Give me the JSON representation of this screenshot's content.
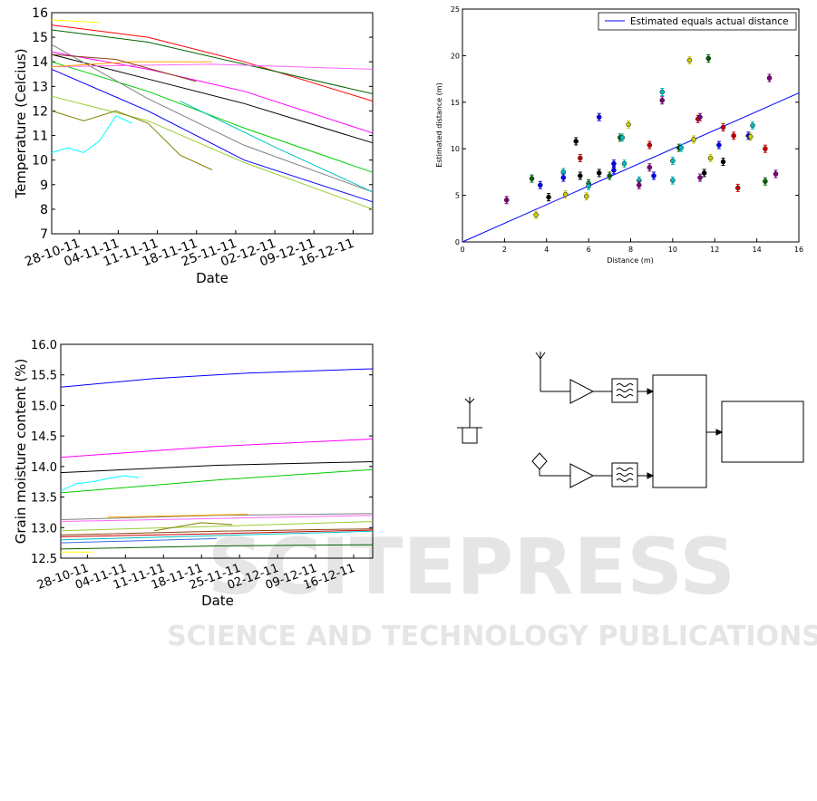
{
  "charts": {
    "temperature": {
      "type": "line",
      "ylabel": "Temperature (Celcius)",
      "xlabel": "Date",
      "ylim": [
        7,
        16
      ],
      "yticks": [
        "7",
        "8",
        "9",
        "10",
        "11",
        "12",
        "13",
        "14",
        "15",
        "16"
      ],
      "xticks": [
        "28-10-11",
        "04-11-11",
        "11-11-11",
        "18-11-11",
        "25-11-11",
        "02-12-11",
        "09-12-11",
        "16-12-11"
      ],
      "series": [
        {
          "color": "#ff0000",
          "x": [
            0,
            0.3,
            0.6,
            1
          ],
          "y": [
            15.5,
            15.0,
            14.0,
            12.4
          ]
        },
        {
          "color": "#006400",
          "x": [
            0,
            0.3,
            0.6,
            1
          ],
          "y": [
            15.3,
            14.8,
            13.9,
            12.7
          ]
        },
        {
          "color": "#ff00ff",
          "x": [
            0,
            0.3,
            0.6,
            1
          ],
          "y": [
            14.4,
            13.7,
            12.8,
            11.1
          ]
        },
        {
          "color": "#000000",
          "x": [
            0,
            0.3,
            0.6,
            1
          ],
          "y": [
            14.3,
            13.3,
            12.3,
            10.7
          ]
        },
        {
          "color": "#00cc00",
          "x": [
            0,
            0.3,
            0.6,
            1
          ],
          "y": [
            14.0,
            12.8,
            11.3,
            9.5
          ]
        },
        {
          "color": "#808080",
          "x": [
            0,
            0.3,
            0.6,
            1
          ],
          "y": [
            14.7,
            12.5,
            10.6,
            8.7
          ]
        },
        {
          "color": "#0000ff",
          "x": [
            0,
            0.3,
            0.6,
            1
          ],
          "y": [
            13.7,
            12.0,
            10.0,
            8.3
          ]
        },
        {
          "color": "#9acd32",
          "x": [
            0,
            0.3,
            0.6,
            1
          ],
          "y": [
            12.6,
            11.6,
            9.9,
            8.0
          ]
        },
        {
          "color": "#ff66ff",
          "x": [
            0,
            0.5,
            1
          ],
          "y": [
            13.8,
            13.9,
            13.7
          ]
        },
        {
          "color": "#ffa500",
          "x": [
            0,
            0.25,
            0.5
          ],
          "y": [
            13.8,
            14.0,
            14.0
          ]
        },
        {
          "color": "#00bfbf",
          "x": [
            0.4,
            0.7,
            1
          ],
          "y": [
            12.4,
            10.5,
            8.7
          ]
        },
        {
          "color": "#808000",
          "x": [
            0,
            0.1,
            0.2,
            0.3,
            0.4,
            0.5
          ],
          "y": [
            12.0,
            11.6,
            12.0,
            11.5,
            10.2,
            9.6
          ]
        },
        {
          "color": "#00ffff",
          "x": [
            0,
            0.05,
            0.1,
            0.15,
            0.2,
            0.25
          ],
          "y": [
            10.3,
            10.5,
            10.3,
            10.8,
            11.8,
            11.5
          ]
        },
        {
          "color": "#8b4513",
          "x": [
            0,
            0.2,
            0.45
          ],
          "y": [
            14.3,
            14.1,
            13.2
          ]
        },
        {
          "color": "#ffff00",
          "x": [
            0,
            0.15
          ],
          "y": [
            15.7,
            15.6
          ]
        }
      ]
    },
    "distance": {
      "type": "scatter",
      "xlabel": "Distance (m)",
      "ylabel": "Estimated distance (m)",
      "xlim": [
        0,
        16
      ],
      "ylim": [
        0,
        25
      ],
      "xticks": [
        "0",
        "2",
        "4",
        "6",
        "8",
        "10",
        "12",
        "14",
        "16"
      ],
      "yticks": [
        "0",
        "5",
        "10",
        "15",
        "20",
        "25"
      ],
      "legend": "Estimated equals actual distance",
      "points": [
        {
          "x": 2.1,
          "y": 4.5,
          "c": "#800080"
        },
        {
          "x": 3.3,
          "y": 6.8,
          "c": "#006400"
        },
        {
          "x": 3.5,
          "y": 2.9,
          "c": "#cccc00"
        },
        {
          "x": 3.7,
          "y": 6.1,
          "c": "#0000ff"
        },
        {
          "x": 4.1,
          "y": 4.8,
          "c": "#000000"
        },
        {
          "x": 4.8,
          "y": 7.5,
          "c": "#00bfbf"
        },
        {
          "x": 4.8,
          "y": 6.9,
          "c": "#0000ff"
        },
        {
          "x": 4.9,
          "y": 5.1,
          "c": "#cccc00"
        },
        {
          "x": 5.4,
          "y": 10.8,
          "c": "#000000"
        },
        {
          "x": 5.6,
          "y": 9.0,
          "c": "#cc0000"
        },
        {
          "x": 5.6,
          "y": 7.1,
          "c": "#000000"
        },
        {
          "x": 5.9,
          "y": 4.9,
          "c": "#cccc00"
        },
        {
          "x": 6.0,
          "y": 6.3,
          "c": "#006400"
        },
        {
          "x": 6.0,
          "y": 6.0,
          "c": "#00bfbf"
        },
        {
          "x": 6.5,
          "y": 13.4,
          "c": "#0000ff"
        },
        {
          "x": 6.5,
          "y": 7.4,
          "c": "#000000"
        },
        {
          "x": 7.0,
          "y": 7.1,
          "c": "#006400"
        },
        {
          "x": 7.2,
          "y": 8.4,
          "c": "#0000ff"
        },
        {
          "x": 7.2,
          "y": 7.7,
          "c": "#0000ff"
        },
        {
          "x": 7.5,
          "y": 11.2,
          "c": "#006400"
        },
        {
          "x": 7.6,
          "y": 11.2,
          "c": "#00bfbf"
        },
        {
          "x": 7.7,
          "y": 8.4,
          "c": "#00bfbf"
        },
        {
          "x": 7.9,
          "y": 12.6,
          "c": "#cccc00"
        },
        {
          "x": 8.4,
          "y": 6.6,
          "c": "#00bfbf"
        },
        {
          "x": 8.4,
          "y": 6.1,
          "c": "#800080"
        },
        {
          "x": 8.9,
          "y": 10.4,
          "c": "#cc0000"
        },
        {
          "x": 8.9,
          "y": 8.0,
          "c": "#800080"
        },
        {
          "x": 9.1,
          "y": 7.1,
          "c": "#0000ff"
        },
        {
          "x": 9.5,
          "y": 16.1,
          "c": "#00bfbf"
        },
        {
          "x": 9.5,
          "y": 15.2,
          "c": "#800080"
        },
        {
          "x": 10.0,
          "y": 8.7,
          "c": "#00bfbf"
        },
        {
          "x": 10.0,
          "y": 6.6,
          "c": "#00bfbf"
        },
        {
          "x": 10.3,
          "y": 10.1,
          "c": "#006400"
        },
        {
          "x": 10.4,
          "y": 10.1,
          "c": "#00bfbf"
        },
        {
          "x": 10.8,
          "y": 19.5,
          "c": "#cccc00"
        },
        {
          "x": 11.0,
          "y": 11.0,
          "c": "#cccc00"
        },
        {
          "x": 11.2,
          "y": 13.2,
          "c": "#cc0000"
        },
        {
          "x": 11.3,
          "y": 13.4,
          "c": "#800080"
        },
        {
          "x": 11.3,
          "y": 6.9,
          "c": "#800080"
        },
        {
          "x": 11.5,
          "y": 7.4,
          "c": "#000000"
        },
        {
          "x": 11.7,
          "y": 19.7,
          "c": "#006400"
        },
        {
          "x": 11.8,
          "y": 9.0,
          "c": "#cccc00"
        },
        {
          "x": 12.2,
          "y": 10.4,
          "c": "#0000ff"
        },
        {
          "x": 12.4,
          "y": 12.3,
          "c": "#cc0000"
        },
        {
          "x": 12.4,
          "y": 8.6,
          "c": "#000000"
        },
        {
          "x": 12.9,
          "y": 11.4,
          "c": "#cc0000"
        },
        {
          "x": 13.1,
          "y": 5.8,
          "c": "#cc0000"
        },
        {
          "x": 13.6,
          "y": 11.4,
          "c": "#0000ff"
        },
        {
          "x": 13.7,
          "y": 11.3,
          "c": "#cccc00"
        },
        {
          "x": 13.8,
          "y": 12.5,
          "c": "#00bfbf"
        },
        {
          "x": 14.4,
          "y": 10.0,
          "c": "#cc0000"
        },
        {
          "x": 14.4,
          "y": 6.5,
          "c": "#006400"
        },
        {
          "x": 14.6,
          "y": 17.6,
          "c": "#800080"
        },
        {
          "x": 14.9,
          "y": 7.3,
          "c": "#800080"
        }
      ]
    },
    "moisture": {
      "type": "line",
      "ylabel": "Grain moisture content (%)",
      "xlabel": "Date",
      "ylim": [
        12.5,
        16.0
      ],
      "yticks": [
        "12.5",
        "13.0",
        "13.5",
        "14.0",
        "14.5",
        "15.0",
        "15.5",
        "16.0"
      ],
      "xticks": [
        "28-10-11",
        "04-11-11",
        "11-11-11",
        "18-11-11",
        "25-11-11",
        "02-12-11",
        "09-12-11",
        "16-12-11"
      ],
      "series": [
        {
          "color": "#0000ff",
          "x": [
            0,
            0.3,
            0.6,
            1
          ],
          "y": [
            15.3,
            15.44,
            15.53,
            15.6
          ]
        },
        {
          "color": "#ff00ff",
          "x": [
            0,
            0.5,
            1
          ],
          "y": [
            14.15,
            14.33,
            14.45
          ]
        },
        {
          "color": "#000000",
          "x": [
            0,
            0.5,
            1
          ],
          "y": [
            13.9,
            14.02,
            14.08
          ]
        },
        {
          "color": "#00cc00",
          "x": [
            0,
            0.5,
            1
          ],
          "y": [
            13.57,
            13.78,
            13.95
          ]
        },
        {
          "color": "#00ffff",
          "x": [
            0,
            0.05,
            0.1,
            0.15,
            0.2,
            0.25
          ],
          "y": [
            13.6,
            13.72,
            13.75,
            13.8,
            13.85,
            13.82
          ]
        },
        {
          "color": "#808080",
          "x": [
            0,
            0.5,
            1
          ],
          "y": [
            13.13,
            13.2,
            13.23
          ]
        },
        {
          "color": "#ffa500",
          "x": [
            0.15,
            0.6
          ],
          "y": [
            13.17,
            13.22
          ]
        },
        {
          "color": "#ff66ff",
          "x": [
            0,
            0.5,
            1
          ],
          "y": [
            13.1,
            13.15,
            13.2
          ]
        },
        {
          "color": "#9acd32",
          "x": [
            0,
            0.5,
            1
          ],
          "y": [
            12.95,
            13.02,
            13.1
          ]
        },
        {
          "color": "#808000",
          "x": [
            0.3,
            0.45,
            0.55
          ],
          "y": [
            12.95,
            13.08,
            13.05
          ]
        },
        {
          "color": "#8b4513",
          "x": [
            0,
            0.5,
            1
          ],
          "y": [
            12.88,
            12.94,
            12.98
          ]
        },
        {
          "color": "#cc0000",
          "x": [
            0,
            0.5,
            1
          ],
          "y": [
            12.85,
            12.9,
            12.96
          ]
        },
        {
          "color": "#00bfbf",
          "x": [
            0,
            0.5,
            1
          ],
          "y": [
            12.8,
            12.87,
            12.94
          ]
        },
        {
          "color": "#4169e1",
          "x": [
            0,
            0.5
          ],
          "y": [
            12.75,
            12.82
          ]
        },
        {
          "color": "#006400",
          "x": [
            0,
            0.5,
            1
          ],
          "y": [
            12.65,
            12.7,
            12.72
          ]
        },
        {
          "color": "#ffff00",
          "x": [
            0,
            0.1
          ],
          "y": [
            12.6,
            12.6
          ]
        }
      ]
    }
  },
  "watermark": {
    "line1": "SCITEPRESS",
    "line2": "SCIENCE AND TECHNOLOGY PUBLICATIONS"
  }
}
